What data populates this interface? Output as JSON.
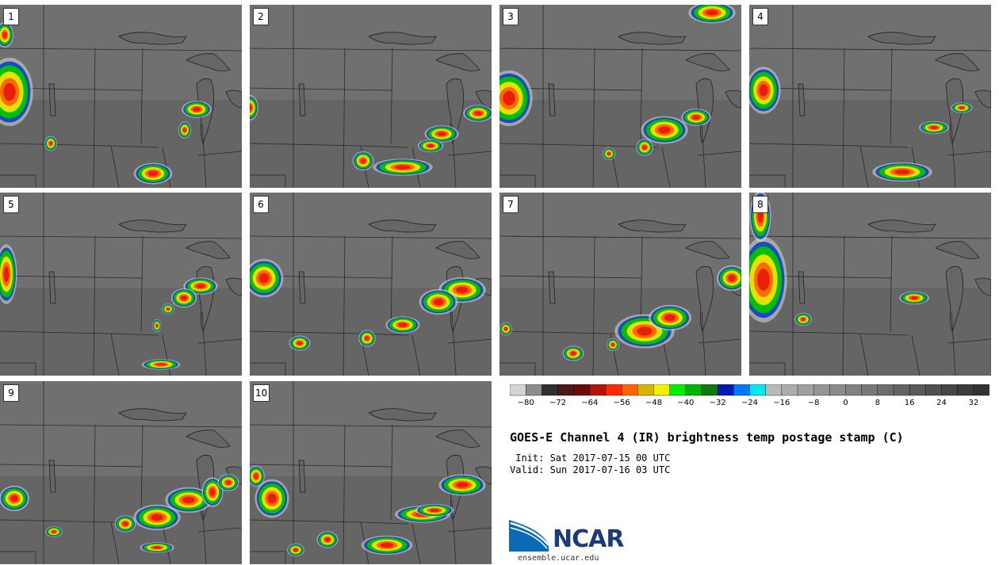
{
  "title": "GOES-E Channel 4 (IR) brightness temp postage stamp (C)",
  "init": " Init: Sat 2017-07-15 00 UTC",
  "valid": "Valid: Sun 2017-07-16 03 UTC",
  "logo": {
    "name": "NCAR",
    "url": "ensemble.ucar.edu"
  },
  "colorbar": {
    "tick_labels": [
      "-80",
      "-72",
      "-64",
      "-56",
      "-48",
      "-40",
      "-32",
      "-24",
      "-16",
      "-8",
      "0",
      "8",
      "16",
      "24",
      "32"
    ],
    "colors": [
      "#d4d4d4",
      "#8c8c8c",
      "#303030",
      "#4a1a1a",
      "#6e0a0a",
      "#b4140a",
      "#ff2a00",
      "#ff6600",
      "#d8b400",
      "#f0f000",
      "#00f000",
      "#00b400",
      "#0a7a0a",
      "#0018b4",
      "#0078ff",
      "#00e8f0",
      "#b8b8b8",
      "#acacac",
      "#a0a0a0",
      "#969696",
      "#8c8c8c",
      "#828282",
      "#787878",
      "#6e6e6e",
      "#646464",
      "#5a5a5a",
      "#505050",
      "#464646",
      "#3c3c3c",
      "#323232"
    ]
  },
  "panels": [
    {
      "label": "1",
      "storms": [
        [
          12,
          110,
          22,
          32
        ],
        [
          248,
          132,
          14,
          8
        ],
        [
          233,
          158,
          6,
          8
        ],
        [
          64,
          175,
          6,
          7
        ],
        [
          193,
          213,
          18,
          10
        ],
        [
          6,
          38,
          8,
          12
        ]
      ]
    },
    {
      "label": "2",
      "storms": [
        [
          242,
          163,
          16,
          8
        ],
        [
          143,
          197,
          10,
          9
        ],
        [
          193,
          205,
          28,
          8
        ],
        [
          288,
          137,
          14,
          8
        ],
        [
          228,
          178,
          12,
          6
        ],
        [
          0,
          130,
          8,
          12
        ]
      ]
    },
    {
      "label": "3",
      "storms": [
        [
          208,
          158,
          22,
          13
        ],
        [
          248,
          142,
          14,
          8
        ],
        [
          12,
          118,
          22,
          26
        ],
        [
          183,
          180,
          8,
          8
        ],
        [
          138,
          188,
          6,
          6
        ],
        [
          268,
          10,
          22,
          10
        ]
      ]
    },
    {
      "label": "4",
      "storms": [
        [
          18,
          108,
          16,
          22
        ],
        [
          193,
          211,
          28,
          9
        ],
        [
          233,
          155,
          14,
          6
        ],
        [
          268,
          130,
          10,
          5
        ]
      ]
    },
    {
      "label": "5",
      "storms": [
        [
          253,
          118,
          16,
          8
        ],
        [
          232,
          133,
          12,
          9
        ],
        [
          212,
          147,
          6,
          5
        ],
        [
          198,
          168,
          4,
          6
        ],
        [
          8,
          103,
          10,
          28
        ],
        [
          203,
          217,
          18,
          5
        ]
      ]
    },
    {
      "label": "6",
      "storms": [
        [
          268,
          123,
          22,
          12
        ],
        [
          238,
          138,
          18,
          12
        ],
        [
          193,
          167,
          16,
          8
        ],
        [
          148,
          184,
          8,
          8
        ],
        [
          18,
          108,
          18,
          18
        ],
        [
          63,
          190,
          10,
          7
        ]
      ]
    },
    {
      "label": "7",
      "storms": [
        [
          183,
          175,
          28,
          16
        ],
        [
          215,
          158,
          20,
          12
        ],
        [
          293,
          108,
          14,
          12
        ],
        [
          143,
          192,
          6,
          6
        ],
        [
          93,
          203,
          10,
          7
        ],
        [
          8,
          172,
          6,
          6
        ]
      ]
    },
    {
      "label": "8",
      "storms": [
        [
          18,
          110,
          22,
          40
        ],
        [
          208,
          133,
          14,
          6
        ],
        [
          68,
          160,
          8,
          6
        ],
        [
          14,
          30,
          10,
          24
        ]
      ]
    },
    {
      "label": "9",
      "storms": [
        [
          198,
          172,
          22,
          12
        ],
        [
          238,
          150,
          22,
          12
        ],
        [
          268,
          140,
          10,
          14
        ],
        [
          158,
          180,
          10,
          8
        ],
        [
          198,
          210,
          16,
          5
        ],
        [
          18,
          148,
          14,
          12
        ],
        [
          288,
          128,
          10,
          8
        ],
        [
          68,
          190,
          8,
          5
        ]
      ]
    },
    {
      "label": "10",
      "storms": [
        [
          268,
          131,
          22,
          10
        ],
        [
          218,
          168,
          26,
          8
        ],
        [
          233,
          163,
          18,
          6
        ],
        [
          173,
          207,
          24,
          9
        ],
        [
          28,
          148,
          16,
          18
        ],
        [
          8,
          120,
          8,
          10
        ],
        [
          98,
          200,
          10,
          8
        ],
        [
          58,
          213,
          8,
          6
        ]
      ]
    }
  ]
}
